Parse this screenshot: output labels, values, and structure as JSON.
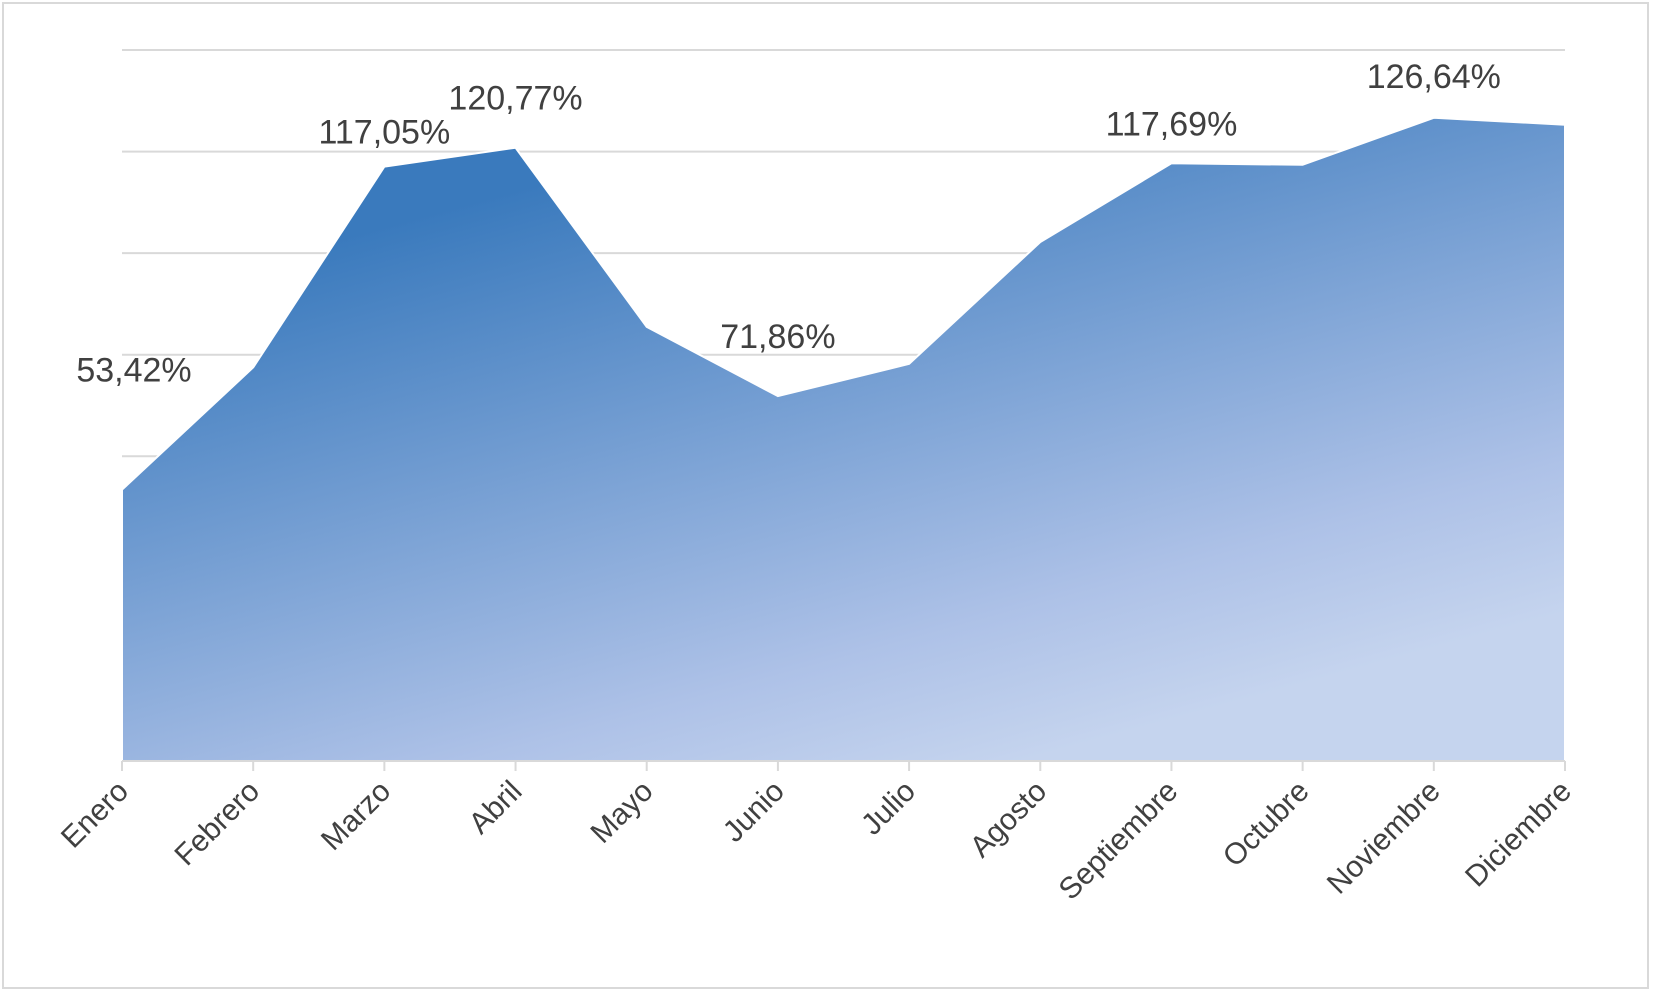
{
  "chart_data": {
    "type": "area",
    "title": "",
    "xlabel": "",
    "ylabel": "",
    "categories": [
      "Enero",
      "Febrero",
      "Marzo",
      "Abril",
      "Mayo",
      "Junio",
      "Julio",
      "Agosto",
      "Septiembre",
      "Octubre",
      "Noviembre",
      "Diciembre"
    ],
    "series": [
      {
        "values": [
          53.42,
          77.5,
          117.05,
          120.77,
          85.5,
          71.86,
          78.2,
          102.2,
          117.69,
          117.4,
          126.64,
          125.3
        ]
      }
    ],
    "data_labels": [
      {
        "index": 0,
        "text": "53,42%"
      },
      {
        "index": 2,
        "text": "117,05%"
      },
      {
        "index": 3,
        "text": "120,77%"
      },
      {
        "index": 5,
        "text": "71,86%"
      },
      {
        "index": 8,
        "text": "117,69%"
      },
      {
        "index": 10,
        "text": "126,64%"
      }
    ],
    "ylim": [
      0,
      140
    ],
    "y_gridline_step": 20,
    "y_tick_labels_visible": false,
    "grid": true,
    "legend": "none",
    "colors": {
      "fill_top": "#3a7abd",
      "fill_mid": "#adc1e7",
      "fill_bottom": "#c5d4ee",
      "outline": "#ffffff",
      "grid": "#d9d9d9",
      "axis": "#d9d9d9",
      "text": "#404040"
    }
  }
}
